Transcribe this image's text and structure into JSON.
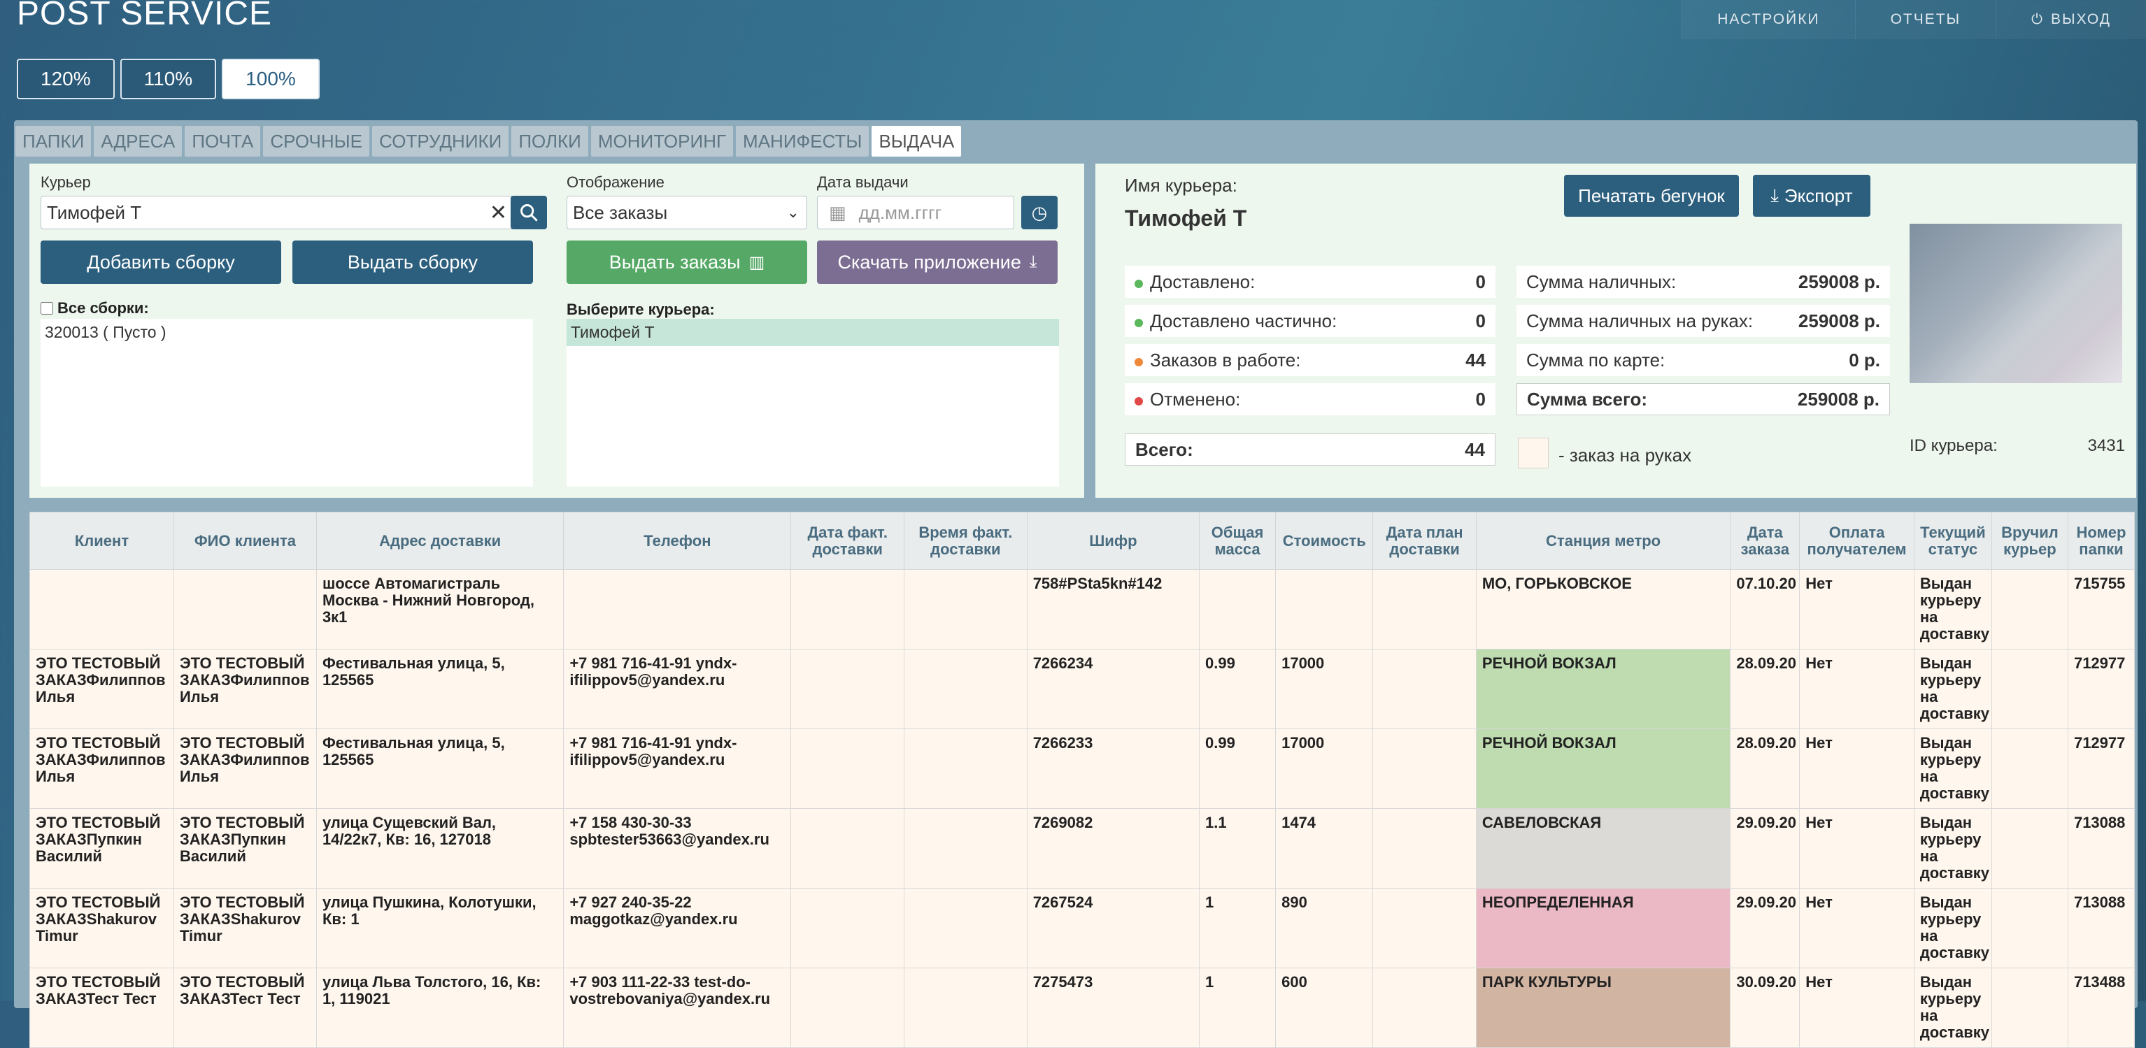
{
  "app": {
    "title": "POST SERVICE"
  },
  "top_nav": {
    "settings": "НАСТРОЙКИ",
    "reports": "ОТЧЕТЫ",
    "logout": "ВЫХОД"
  },
  "zoom": [
    "120%",
    "110%",
    "100%"
  ],
  "tabs": [
    "ПАПКИ",
    "АДРЕСА",
    "ПОЧТА",
    "СРОЧНЫЕ",
    "СОТРУДНИКИ",
    "ПОЛКИ",
    "МОНИТОРИНГ",
    "МАНИФЕСТЫ",
    "ВЫДАЧА"
  ],
  "left": {
    "courier_label": "Курьер",
    "courier_value": "Тимофей Т",
    "add_assembly": "Добавить сборку",
    "issue_assembly": "Выдать сборку",
    "all_assemblies_label": "Все сборки:",
    "assemblies": [
      "320013 ( Пусто )"
    ],
    "display_label": "Отображение",
    "display_value": "Все заказы",
    "date_label": "Дата выдачи",
    "date_placeholder": "дд.мм.гггг",
    "issue_orders": "Выдать заказы",
    "download_app": "Скачать приложение",
    "select_courier_label": "Выберите курьера:",
    "couriers": [
      "Тимофей Т"
    ]
  },
  "right": {
    "courier_name_label": "Имя курьера:",
    "courier_name": "Тимофей Т",
    "print_button": "Печатать бегунок",
    "export_button": "Экспорт",
    "stats": [
      {
        "label": "Доставлено:",
        "value": "0",
        "color": "#5cb85c"
      },
      {
        "label": "Доставлено частично:",
        "value": "0",
        "color": "#5cb85c"
      },
      {
        "label": "Заказов в работе:",
        "value": "44",
        "color": "#f0883a"
      },
      {
        "label": "Отменено:",
        "value": "0",
        "color": "#e04848"
      }
    ],
    "total_label": "Всего:",
    "total_value": "44",
    "sums": [
      {
        "label": "Сумма наличных:",
        "value": "259008 р."
      },
      {
        "label": "Сумма наличных на руках:",
        "value": "259008 р."
      },
      {
        "label": "Сумма по карте:",
        "value": "0 р."
      }
    ],
    "sum_total_label": "Сумма всего:",
    "sum_total_value": "259008 р.",
    "legend_text": "- заказ на руках",
    "courier_id_label": "ID курьера:",
    "courier_id": "3431"
  },
  "table": {
    "columns": [
      "Клиент",
      "ФИО клиента",
      "Адрес доставки",
      "Телефон",
      "Дата факт. доставки",
      "Время факт. доставки",
      "Шифр",
      "Общая масса",
      "Стоимость",
      "Дата план доставки",
      "Станция метро",
      "Дата заказа",
      "Оплата получателем",
      "Текущий статус",
      "Вручил курьер",
      "Номер папки"
    ],
    "rows": [
      {
        "client": "",
        "fio": "",
        "address": "шоссе Автомагистраль Москва - Нижний Новгород, 3к1",
        "phone": "",
        "fact_date": "",
        "fact_time": "",
        "code": "758#PSta5kn#142",
        "mass": "",
        "cost": "",
        "plan_date": "",
        "metro": "МО, ГОРЬКОВСКОЕ",
        "metro_color": "#fff7ee",
        "order_date": "07.10.20",
        "pay": "Нет",
        "status": "Выдан курьеру на доставку",
        "handed": "",
        "folder": "715755"
      },
      {
        "client": "ЭТО ТЕСТОВЫЙ ЗАКАЗФилиппов Илья",
        "fio": "ЭТО ТЕСТОВЫЙ ЗАКАЗФилиппов Илья",
        "address": "Фестивальная улица, 5, 125565",
        "phone": "+7 981 716-41-91 yndx-ifilippov5@yandex.ru",
        "fact_date": "",
        "fact_time": "",
        "code": "7266234",
        "mass": "0.99",
        "cost": "17000",
        "plan_date": "",
        "metro": "РЕЧНОЙ ВОКЗАЛ",
        "metro_color": "#bedcb0",
        "order_date": "28.09.20",
        "pay": "Нет",
        "status": "Выдан курьеру на доставку",
        "handed": "",
        "folder": "712977"
      },
      {
        "client": "ЭТО ТЕСТОВЫЙ ЗАКАЗФилиппов Илья",
        "fio": "ЭТО ТЕСТОВЫЙ ЗАКАЗФилиппов Илья",
        "address": "Фестивальная улица, 5, 125565",
        "phone": "+7 981 716-41-91 yndx-ifilippov5@yandex.ru",
        "fact_date": "",
        "fact_time": "",
        "code": "7266233",
        "mass": "0.99",
        "cost": "17000",
        "plan_date": "",
        "metro": "РЕЧНОЙ ВОКЗАЛ",
        "metro_color": "#bedcb0",
        "order_date": "28.09.20",
        "pay": "Нет",
        "status": "Выдан курьеру на доставку",
        "handed": "",
        "folder": "712977"
      },
      {
        "client": "ЭТО ТЕСТОВЫЙ ЗАКАЗПупкин Василий",
        "fio": "ЭТО ТЕСТОВЫЙ ЗАКАЗПупкин Василий",
        "address": "улица Сущевский Вал, 14/22к7, Кв: 16, 127018",
        "phone": "+7 158 430-30-33 spbtester53663@yandex.ru",
        "fact_date": "",
        "fact_time": "",
        "code": "7269082",
        "mass": "1.1",
        "cost": "1474",
        "plan_date": "",
        "metro": "САВЕЛОВСКАЯ",
        "metro_color": "#dcdad6",
        "order_date": "29.09.20",
        "pay": "Нет",
        "status": "Выдан курьеру на доставку",
        "handed": "",
        "folder": "713088"
      },
      {
        "client": "ЭТО ТЕСТОВЫЙ ЗАКАЗShakurov Timur",
        "fio": "ЭТО ТЕСТОВЫЙ ЗАКАЗShakurov Timur",
        "address": "улица Пушкина, Колотушки, Кв: 1",
        "phone": "+7 927 240-35-22 maggotkaz@yandex.ru",
        "fact_date": "",
        "fact_time": "",
        "code": "7267524",
        "mass": "1",
        "cost": "890",
        "plan_date": "",
        "metro": "НЕОПРЕДЕЛЕННАЯ",
        "metro_color": "#ebb8c6",
        "order_date": "29.09.20",
        "pay": "Нет",
        "status": "Выдан курьеру на доставку",
        "handed": "",
        "folder": "713088"
      },
      {
        "client": "ЭТО ТЕСТОВЫЙ ЗАКАЗТест Тест",
        "fio": "ЭТО ТЕСТОВЫЙ ЗАКАЗТест Тест",
        "address": "улица Льва Толстого, 16, Кв: 1, 119021",
        "phone": "+7 903 111-22-33 test-do-vostrebovaniya@yandex.ru",
        "fact_date": "",
        "fact_time": "",
        "code": "7275473",
        "mass": "1",
        "cost": "600",
        "plan_date": "",
        "metro": "ПАРК КУЛЬТУРЫ",
        "metro_color": "#d2b4a2",
        "order_date": "30.09.20",
        "pay": "Нет",
        "status": "Выдан курьеру на доставку",
        "handed": "",
        "folder": "713488"
      }
    ]
  }
}
